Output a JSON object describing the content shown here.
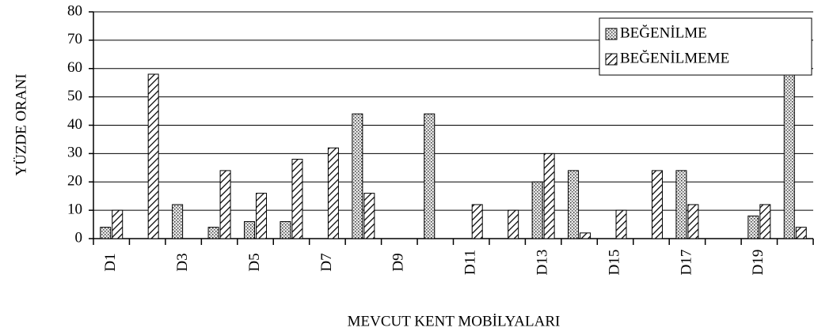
{
  "chart_data": {
    "type": "bar",
    "x_label": "MEVCUT KENT MOBİLYALARI",
    "y_label": "YÜZDE ORANI",
    "categories": [
      "D1",
      null,
      "D3",
      null,
      "D5",
      null,
      "D7",
      null,
      "D9",
      null,
      "D11",
      null,
      "D13",
      null,
      "D15",
      null,
      "D17",
      null,
      "D19",
      null
    ],
    "series": [
      {
        "name": "BEĞENİLME",
        "pattern": "dots",
        "values": [
          4,
          0,
          12,
          4,
          6,
          6,
          0,
          44,
          0,
          44,
          0,
          0,
          20,
          24,
          0,
          0,
          24,
          0,
          8,
          74
        ]
      },
      {
        "name": "BEĞENİLMEME",
        "pattern": "hatch",
        "values": [
          10,
          58,
          0,
          24,
          16,
          28,
          32,
          16,
          0,
          0,
          12,
          10,
          30,
          2,
          10,
          24,
          12,
          0,
          12,
          4
        ]
      }
    ],
    "ylim": [
      0,
      80
    ],
    "yticks": [
      0,
      10,
      20,
      30,
      40,
      50,
      60,
      70,
      80
    ],
    "grid": true,
    "legend": "top-right"
  }
}
